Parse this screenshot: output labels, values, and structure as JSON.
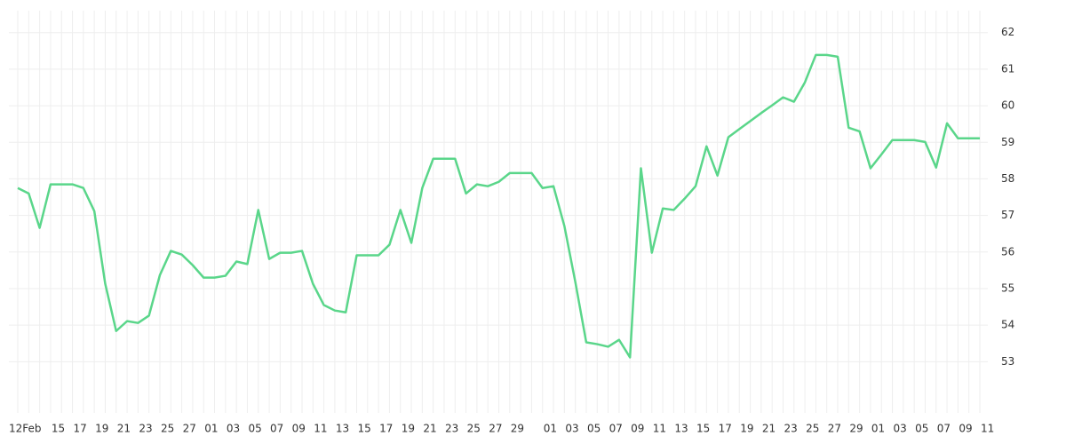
{
  "chart_data": {
    "type": "line",
    "categories": [
      "12Feb",
      null,
      null,
      "15",
      null,
      "17",
      null,
      "19",
      null,
      "21",
      null,
      "23",
      null,
      "25",
      null,
      "27",
      null,
      "01",
      null,
      "03",
      null,
      "05",
      null,
      "07",
      null,
      "09",
      null,
      "11",
      null,
      "13",
      null,
      "15",
      null,
      "17",
      null,
      "19",
      null,
      "21",
      null,
      "23",
      null,
      "25",
      null,
      "27",
      null,
      "29",
      null,
      null,
      "01",
      null,
      "03",
      null,
      "05",
      null,
      "07",
      null,
      "09",
      null,
      "11",
      null,
      "13",
      null,
      "15",
      null,
      "17",
      null,
      "19",
      null,
      "21",
      null,
      "23",
      null,
      "25",
      null,
      "27",
      null,
      "29",
      null,
      "01",
      null,
      "03",
      null,
      "05",
      null,
      "07",
      null,
      "09",
      null,
      "11"
    ],
    "series": [
      {
        "color": "#5ad68a",
        "values": [
          57.75,
          57.6,
          56.66,
          57.85,
          57.85,
          57.85,
          57.75,
          57.12,
          55.13,
          53.84,
          54.11,
          54.06,
          54.26,
          55.37,
          56.03,
          55.93,
          55.64,
          55.3,
          55.3,
          55.35,
          55.74,
          55.67,
          57.15,
          55.81,
          55.98,
          55.98,
          56.03,
          55.13,
          54.55,
          54.4,
          54.35,
          55.91,
          55.91,
          55.91,
          56.2,
          57.15,
          56.25,
          57.75,
          58.55,
          58.55,
          58.55,
          57.6,
          57.85,
          57.8,
          57.92,
          58.16,
          58.16,
          58.16,
          57.75,
          57.8,
          56.71,
          55.18,
          53.53,
          53.48,
          53.41,
          53.6,
          53.12,
          58.29,
          55.98,
          57.19,
          57.15,
          57.46,
          57.8,
          58.89,
          58.09,
          59.14,
          59.36,
          59.58,
          59.8,
          60.01,
          60.23,
          60.11,
          60.64,
          61.39,
          61.39,
          61.34,
          59.4,
          59.3,
          58.29,
          58.67,
          59.06,
          59.06,
          59.06,
          59.01,
          58.31,
          59.52,
          59.11,
          59.11,
          59.11
        ]
      }
    ],
    "ylim": [
      51.6,
      62.6
    ],
    "yticks": [
      53,
      54,
      55,
      56,
      57,
      58,
      59,
      60,
      61,
      62
    ],
    "grid": true
  }
}
